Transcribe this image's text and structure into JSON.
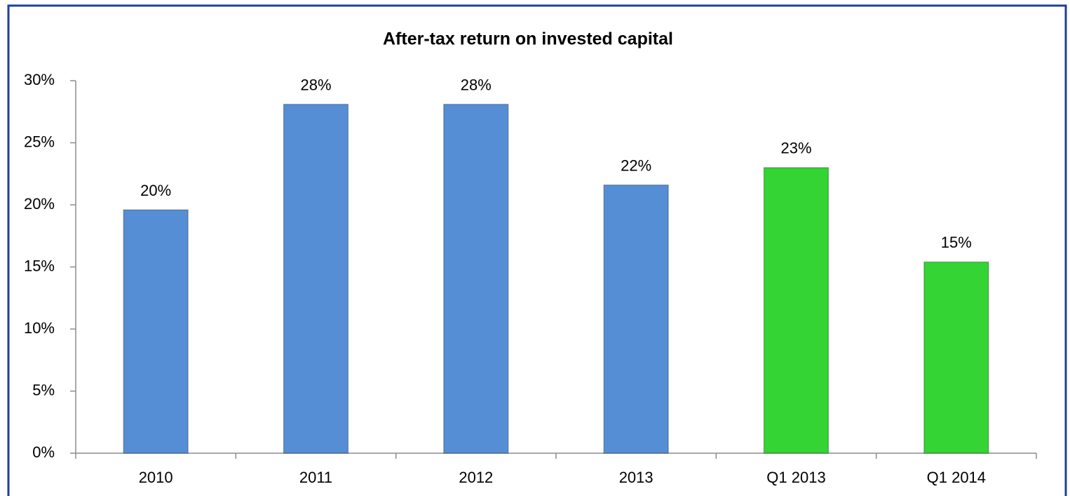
{
  "chart_data": {
    "type": "bar",
    "title": "After-tax return on invested capital",
    "categories": [
      "2010",
      "2011",
      "2012",
      "2013",
      "Q1 2013",
      "Q1 2014"
    ],
    "values": [
      19.6,
      28.1,
      28.1,
      21.6,
      23.0,
      15.4
    ],
    "value_labels": [
      "20%",
      "28%",
      "28%",
      "22%",
      "23%",
      "15%"
    ],
    "colors": [
      "#558ed5",
      "#558ed5",
      "#558ed5",
      "#558ed5",
      "#33d433",
      "#33d433"
    ],
    "ylim": [
      0,
      30
    ],
    "yticks": [
      {
        "value": 0,
        "label": "0%"
      },
      {
        "value": 5,
        "label": "5%"
      },
      {
        "value": 10,
        "label": "10%"
      },
      {
        "value": 15,
        "label": "15%"
      },
      {
        "value": 20,
        "label": "20%"
      },
      {
        "value": 25,
        "label": "25%"
      },
      {
        "value": 30,
        "label": "30%"
      }
    ],
    "grid": false
  }
}
